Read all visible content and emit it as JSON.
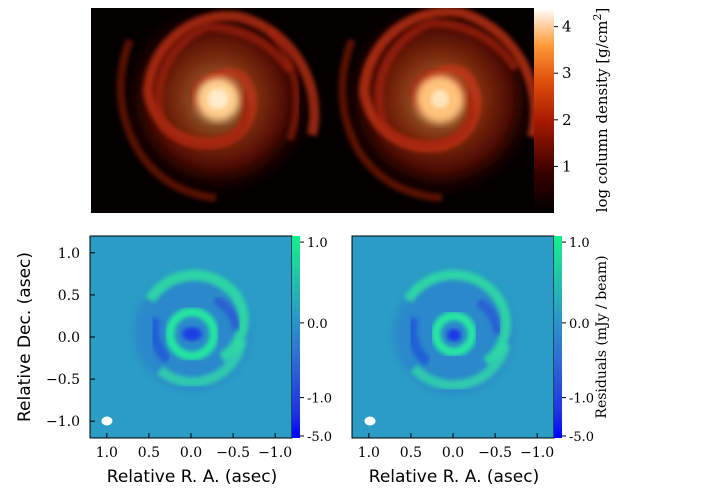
{
  "chart_data": [
    {
      "type": "heatmap",
      "panels": [
        "left-disk-simulation",
        "right-disk-simulation"
      ],
      "colormap": "gist_heat",
      "colorbar": {
        "label": "log column density [g/cm²]",
        "label_main": "log column density [g/cm",
        "label_sup": "2",
        "label_end": "]",
        "ticks": [
          "1",
          "2",
          "3",
          "4"
        ],
        "range": [
          0,
          4.4
        ]
      }
    },
    {
      "type": "heatmap",
      "xlabel": "Relative R. A. (asec)",
      "ylabel": "Relative Dec. (asec)",
      "x_ticks": [
        "1.0",
        "0.5",
        "0.0",
        "−0.5",
        "−1.0"
      ],
      "y_ticks": [
        "1.0",
        "0.5",
        "0.0",
        "−0.5",
        "−1.0"
      ],
      "xlim": [
        1.2,
        -1.2
      ],
      "ylim": [
        -1.2,
        1.2
      ],
      "colorbar": {
        "ticks": [
          "1.0",
          "0.0",
          "-1.0",
          "-5.0"
        ]
      },
      "beam": "white ellipse"
    },
    {
      "type": "heatmap",
      "xlabel": "Relative R. A. (asec)",
      "x_ticks": [
        "1.0",
        "0.5",
        "0.0",
        "−0.5",
        "−1.0"
      ],
      "xlim": [
        1.2,
        -1.2
      ],
      "ylim": [
        -1.2,
        1.2
      ],
      "colorbar": {
        "label": "Residuals (mJy / beam)",
        "ticks": [
          "1.0",
          "0.0",
          "-1.0",
          "-5.0"
        ]
      },
      "beam": "white ellipse"
    }
  ]
}
